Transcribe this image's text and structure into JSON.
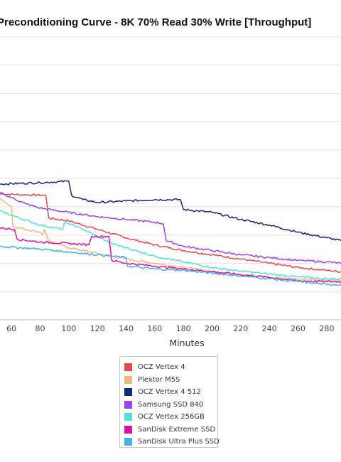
{
  "chart_data": {
    "type": "line",
    "title": "Preconditioning Curve - 8K 70% Read 30% Write [Throughput]",
    "xlabel": "Minutes",
    "ylabel": "",
    "xlim": [
      52,
      290
    ],
    "ylim": [
      0,
      10
    ],
    "x_ticks": [
      60,
      80,
      100,
      120,
      140,
      160,
      180,
      200,
      220,
      240,
      260,
      280
    ],
    "grid": true,
    "legend_position": "bottom",
    "series": [
      {
        "name": "OCZ Vertex 4",
        "color": "#e8474b",
        "points": [
          [
            52,
            4.45
          ],
          [
            84,
            4.4
          ],
          [
            86,
            3.6
          ],
          [
            100,
            3.5
          ],
          [
            120,
            3.2
          ],
          [
            140,
            2.9
          ],
          [
            160,
            2.65
          ],
          [
            180,
            2.45
          ],
          [
            200,
            2.3
          ],
          [
            220,
            2.15
          ],
          [
            240,
            2.0
          ],
          [
            260,
            1.85
          ],
          [
            280,
            1.75
          ],
          [
            290,
            1.7
          ]
        ]
      },
      {
        "name": "Plextor M5S",
        "color": "#f0b77a",
        "points": [
          [
            52,
            4.3
          ],
          [
            57,
            4.1
          ],
          [
            60,
            4.0
          ],
          [
            61,
            3.3
          ],
          [
            80,
            3.1
          ],
          [
            82,
            3.0
          ],
          [
            83,
            3.2
          ],
          [
            86,
            2.8
          ],
          [
            100,
            2.55
          ],
          [
            120,
            2.35
          ],
          [
            140,
            2.15
          ],
          [
            160,
            2.0
          ],
          [
            180,
            1.85
          ],
          [
            200,
            1.72
          ],
          [
            220,
            1.6
          ],
          [
            240,
            1.5
          ],
          [
            260,
            1.45
          ],
          [
            280,
            1.4
          ],
          [
            290,
            1.4
          ]
        ]
      },
      {
        "name": "OCZ Vertex 4 512",
        "color": "#13287a",
        "points": [
          [
            52,
            4.8
          ],
          [
            80,
            4.85
          ],
          [
            100,
            4.9
          ],
          [
            102,
            4.4
          ],
          [
            110,
            4.25
          ],
          [
            120,
            4.15
          ],
          [
            140,
            4.2
          ],
          [
            160,
            4.25
          ],
          [
            178,
            4.25
          ],
          [
            180,
            3.9
          ],
          [
            200,
            3.8
          ],
          [
            220,
            3.55
          ],
          [
            240,
            3.35
          ],
          [
            260,
            3.1
          ],
          [
            280,
            2.9
          ],
          [
            290,
            2.8
          ]
        ]
      },
      {
        "name": "Samsung SSD 840",
        "color": "#9b45e8",
        "points": [
          [
            52,
            4.5
          ],
          [
            70,
            4.1
          ],
          [
            80,
            3.95
          ],
          [
            100,
            3.8
          ],
          [
            120,
            3.65
          ],
          [
            140,
            3.55
          ],
          [
            160,
            3.45
          ],
          [
            166,
            3.4
          ],
          [
            168,
            2.8
          ],
          [
            180,
            2.6
          ],
          [
            200,
            2.45
          ],
          [
            220,
            2.3
          ],
          [
            240,
            2.2
          ],
          [
            260,
            2.1
          ],
          [
            280,
            2.05
          ],
          [
            290,
            2.0
          ]
        ]
      },
      {
        "name": "OCZ Vertex 256GB",
        "color": "#4ee3d4",
        "points": [
          [
            52,
            3.85
          ],
          [
            60,
            3.7
          ],
          [
            80,
            3.35
          ],
          [
            90,
            3.25
          ],
          [
            96,
            3.2
          ],
          [
            97,
            3.45
          ],
          [
            100,
            3.4
          ],
          [
            110,
            3.2
          ],
          [
            120,
            2.95
          ],
          [
            130,
            2.7
          ],
          [
            140,
            2.55
          ],
          [
            160,
            2.25
          ],
          [
            180,
            2.05
          ],
          [
            200,
            1.85
          ],
          [
            220,
            1.72
          ],
          [
            240,
            1.62
          ],
          [
            260,
            1.52
          ],
          [
            280,
            1.45
          ],
          [
            290,
            1.45
          ]
        ]
      },
      {
        "name": "SanDisk Extreme SSD",
        "color": "#d810b2",
        "points": [
          [
            52,
            3.25
          ],
          [
            62,
            3.2
          ],
          [
            64,
            2.85
          ],
          [
            80,
            2.75
          ],
          [
            100,
            2.7
          ],
          [
            114,
            2.65
          ],
          [
            116,
            2.95
          ],
          [
            128,
            2.95
          ],
          [
            130,
            2.1
          ],
          [
            140,
            2.0
          ],
          [
            160,
            1.9
          ],
          [
            180,
            1.8
          ],
          [
            200,
            1.7
          ],
          [
            220,
            1.6
          ],
          [
            240,
            1.5
          ],
          [
            260,
            1.38
          ],
          [
            280,
            1.35
          ],
          [
            290,
            1.35
          ]
        ]
      },
      {
        "name": "SanDisk Ultra Plus SSD",
        "color": "#41b0ee",
        "points": [
          [
            52,
            2.6
          ],
          [
            80,
            2.5
          ],
          [
            100,
            2.4
          ],
          [
            120,
            2.3
          ],
          [
            130,
            2.25
          ],
          [
            140,
            2.2
          ],
          [
            141,
            1.9
          ],
          [
            150,
            1.85
          ],
          [
            160,
            1.8
          ],
          [
            180,
            1.75
          ],
          [
            200,
            1.65
          ],
          [
            220,
            1.55
          ],
          [
            240,
            1.45
          ],
          [
            260,
            1.35
          ],
          [
            280,
            1.25
          ],
          [
            290,
            1.25
          ]
        ]
      }
    ]
  }
}
